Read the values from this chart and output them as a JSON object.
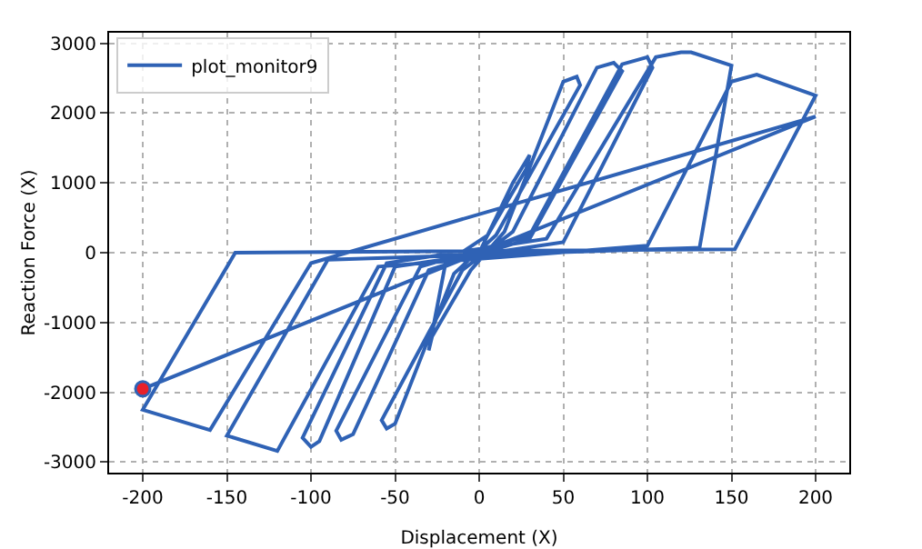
{
  "chart_data": {
    "type": "line",
    "xlabel": "Displacement (X)",
    "ylabel": "Reaction Force (X)",
    "xlim": [
      -220,
      220
    ],
    "xticks": [
      -200,
      -150,
      -100,
      -50,
      0,
      50,
      100,
      150,
      200
    ],
    "ylim": [
      -3150,
      3150
    ],
    "yticks": [
      -3000,
      -2000,
      -1000,
      0,
      1000,
      2000,
      3000
    ],
    "grid": true,
    "legend": "top left",
    "line_style": "solid",
    "series": [
      {
        "name": "plot_monitor9",
        "color": "#2f62b5",
        "x": [
          0,
          20,
          30,
          28,
          5,
          -20,
          -30,
          -28,
          -5,
          15,
          50,
          58,
          60,
          10,
          -15,
          -50,
          -55,
          -58,
          -10,
          20,
          70,
          80,
          85,
          30,
          -30,
          -75,
          -82,
          -85,
          -35,
          30,
          85,
          100,
          103,
          50,
          -50,
          -95,
          -100,
          -105,
          -55,
          40,
          105,
          120,
          126,
          150,
          131,
          -90,
          -150,
          -120,
          -60,
          100,
          150,
          165,
          200,
          152,
          -145,
          -200,
          -160,
          -100,
          200,
          -200
        ],
        "values": [
          0,
          1000,
          1400,
          1200,
          250,
          -150,
          -1400,
          -1200,
          -250,
          300,
          2450,
          2520,
          2400,
          250,
          -300,
          -2450,
          -2520,
          -2400,
          -250,
          300,
          2650,
          2720,
          2600,
          200,
          -250,
          -2600,
          -2680,
          -2550,
          -200,
          250,
          2700,
          2800,
          2650,
          150,
          -200,
          -2700,
          -2780,
          -2650,
          -150,
          200,
          2800,
          2870,
          2870,
          2680,
          70,
          -100,
          -2620,
          -2840,
          -200,
          100,
          2450,
          2550,
          2250,
          50,
          0,
          -2250,
          -2540,
          -150,
          1950,
          -1950
        ]
      },
      {
        "type": "scatter",
        "color": "#e8202a",
        "x": [
          -200
        ],
        "values": [
          -1950
        ]
      }
    ]
  }
}
